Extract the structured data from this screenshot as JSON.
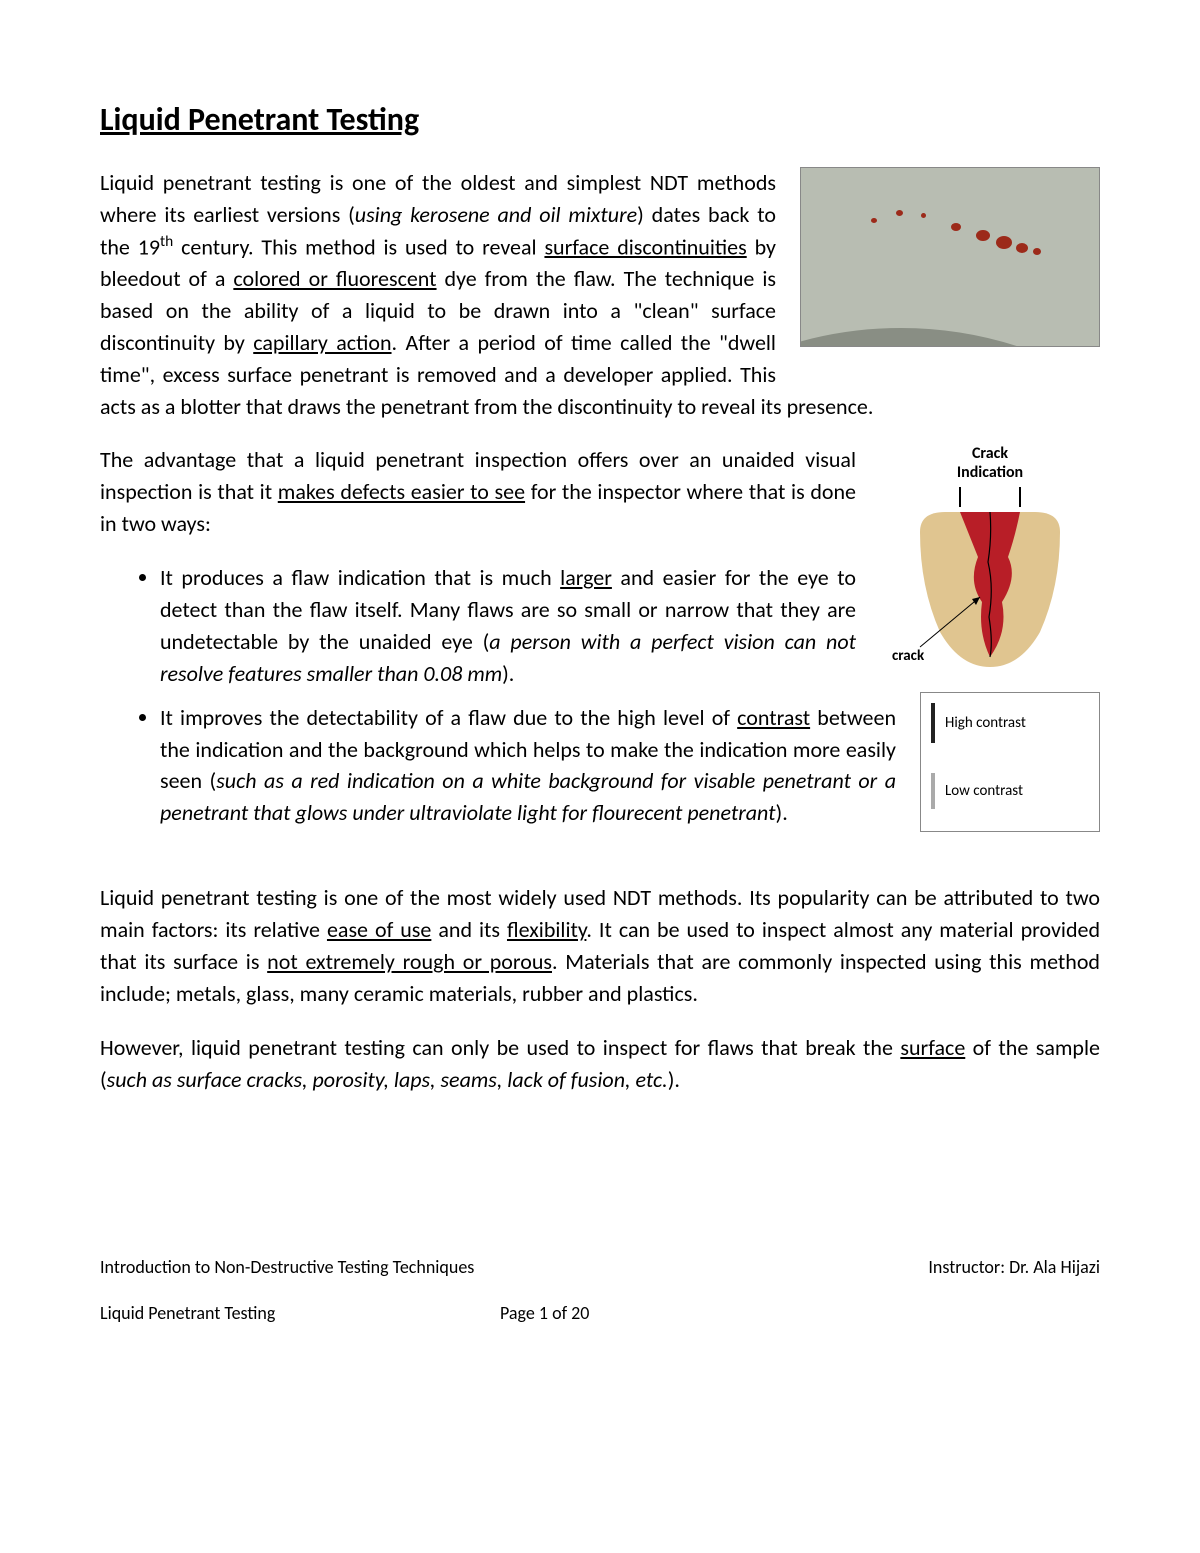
{
  "title": "Liquid Penetrant Testing",
  "para1": {
    "t1": "Liquid penetrant testing is one of the oldest and simplest NDT methods where its earliest versions (",
    "i1": "using kerosene and oil mixture",
    "t2": ") dates back to the 19",
    "sup": "th",
    "t3": " century. This method is used to reveal ",
    "u1": "surface discontinuities",
    "t4": " by bleedout of a ",
    "u2": "colored or fluorescent",
    "t5": " dye from the flaw.  The technique is based on the ability of a liquid to be drawn into a \"clean\" surface discontinuity by ",
    "u3": "capillary action",
    "t6": ". After a period of time called the \"dwell time\", excess surface penetrant is removed and a developer applied. This acts as a blotter that draws the penetrant from the discontinuity to reveal its presence."
  },
  "para2": {
    "t1": "The advantage that a liquid penetrant inspection offers over an unaided visual inspection is that it ",
    "u1": "makes defects easier to see",
    "t2": " for the inspector where that is done in two ways:"
  },
  "bullets": {
    "b1": {
      "t1": "It produces a flaw indication that is much ",
      "u1": "larger",
      "t2": " and easier for the eye to detect than the flaw itself. Many flaws are so small or narrow that they are undetectable by the unaided eye (",
      "i1": "a person with a perfect vision can not resolve features smaller than 0.08 mm",
      "t3": ")."
    },
    "b2": {
      "t1": "It improves the detectability of a flaw due to the high level of ",
      "u1": "contrast",
      "t2": " between the indication and the background which helps to make the indication more easily seen (",
      "i1": "such as a red indication on a white background for visable penetrant or a penetrant that glows under ultraviolate light for flourecent penetrant",
      "t3": ")."
    }
  },
  "para3": {
    "t1": "Liquid penetrant testing is one of the most widely used NDT methods. Its popularity can be attributed to two main factors: its relative ",
    "u1": "ease of use",
    "t2": " and its ",
    "u2": "flexibility",
    "t3": ". It can be used to inspect almost any material provided that its surface is ",
    "u3": "not extremely rough or porous",
    "t4": ". Materials that are commonly inspected using this method include; metals, glass, many ceramic materials, rubber and plastics."
  },
  "para4": {
    "t1": "However, liquid penetrant testing can only be used to inspect for flaws that break the ",
    "u1": "surface",
    "t2": " of the sample (",
    "i1": "such as surface cracks, porosity, laps, seams, lack of fusion, etc.",
    "t3": ")."
  },
  "diagram": {
    "title_l1": "Crack",
    "title_l2": "Indication",
    "crack_label": "crack",
    "material_color": "#e0c590",
    "penetrant_color": "#b81e27",
    "crack_color": "#000000"
  },
  "contrast": {
    "high": "High contrast",
    "low": "Low contrast"
  },
  "footer": {
    "course": "Introduction to Non-Destructive Testing Techniques",
    "instructor": "Instructor: Dr. Ala Hijazi",
    "chapter": "Liquid Penetrant Testing",
    "page": "Page 1 of 20"
  },
  "photo_dots": [
    {
      "l": 70,
      "t": 50,
      "w": 6,
      "h": 5
    },
    {
      "l": 95,
      "t": 42,
      "w": 7,
      "h": 6
    },
    {
      "l": 120,
      "t": 45,
      "w": 5,
      "h": 5
    },
    {
      "l": 150,
      "t": 55,
      "w": 10,
      "h": 8
    },
    {
      "l": 175,
      "t": 62,
      "w": 14,
      "h": 11
    },
    {
      "l": 195,
      "t": 68,
      "w": 16,
      "h": 13
    },
    {
      "l": 215,
      "t": 75,
      "w": 12,
      "h": 10
    },
    {
      "l": 232,
      "t": 80,
      "w": 8,
      "h": 7
    }
  ]
}
